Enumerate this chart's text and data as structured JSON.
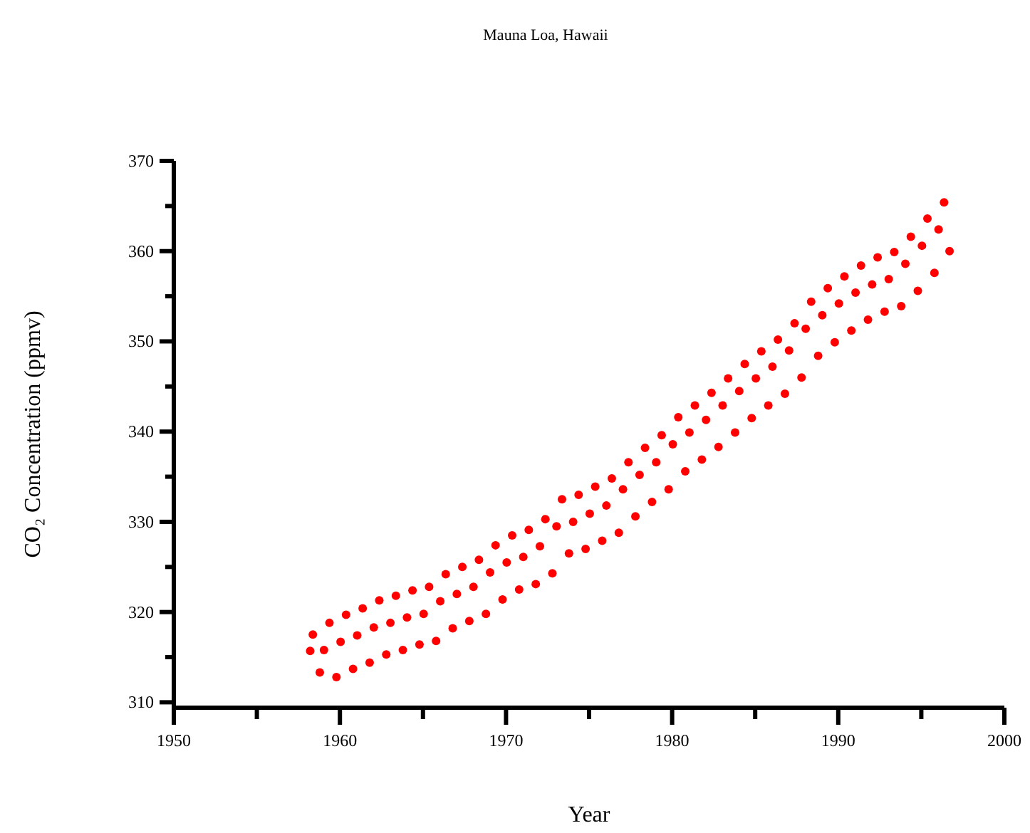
{
  "chart_data": {
    "type": "scatter",
    "title": "Mauna Loa, Hawaii",
    "xlabel": "Year",
    "ylabel": "CO₂ Concentration (ppmv)",
    "xlim": [
      1950,
      2000
    ],
    "ylim": [
      309.4,
      370
    ],
    "xticks": [
      1950,
      {
        "value": 1955,
        "label": null
      },
      1960,
      {
        "value": 1965,
        "label": null
      },
      1970,
      {
        "value": 1975,
        "label": null
      },
      1980,
      {
        "value": 1985,
        "label": null
      },
      1990,
      {
        "value": 1995,
        "label": null
      },
      2000
    ],
    "yticks": [
      310,
      {
        "value": 315,
        "label": null
      },
      320,
      {
        "value": 325,
        "label": null
      },
      330,
      {
        "value": 335,
        "label": null
      },
      340,
      {
        "value": 345,
        "label": null
      },
      350,
      {
        "value": 355,
        "label": null
      },
      360,
      {
        "value": 365,
        "label": null
      },
      370
    ],
    "grid": false,
    "marker": "circle",
    "series": [
      {
        "color": "#ff0000",
        "x": [
          1958.21,
          1958.37,
          1958.79,
          1959.04,
          1959.37,
          1959.79,
          1960.04,
          1960.37,
          1960.79,
          1961.04,
          1961.37,
          1961.79,
          1962.04,
          1962.37,
          1962.79,
          1963.04,
          1963.37,
          1963.79,
          1964.04,
          1964.37,
          1964.79,
          1965.04,
          1965.37,
          1965.79,
          1966.04,
          1966.37,
          1966.79,
          1967.04,
          1967.37,
          1967.79,
          1968.04,
          1968.37,
          1968.79,
          1969.04,
          1969.37,
          1969.79,
          1970.04,
          1970.37,
          1970.79,
          1971.04,
          1971.37,
          1971.79,
          1972.04,
          1972.37,
          1972.79,
          1973.04,
          1973.37,
          1973.79,
          1974.04,
          1974.37,
          1974.79,
          1975.04,
          1975.37,
          1975.79,
          1976.04,
          1976.37,
          1976.79,
          1977.04,
          1977.37,
          1977.79,
          1978.04,
          1978.37,
          1978.79,
          1979.04,
          1979.37,
          1979.79,
          1980.04,
          1980.37,
          1980.79,
          1981.04,
          1981.37,
          1981.79,
          1982.04,
          1982.37,
          1982.79,
          1983.04,
          1983.37,
          1983.79,
          1984.04,
          1984.37,
          1984.79,
          1985.04,
          1985.37,
          1985.79,
          1986.04,
          1986.37,
          1986.79,
          1987.04,
          1987.37,
          1987.79,
          1988.04,
          1988.37,
          1988.79,
          1989.04,
          1989.37,
          1989.79,
          1990.04,
          1990.37,
          1990.79,
          1991.04,
          1991.37,
          1991.79,
          1992.04,
          1992.37,
          1992.79,
          1993.04,
          1993.37,
          1993.79,
          1994.04,
          1994.37,
          1994.79,
          1995.04,
          1995.37,
          1995.79,
          1996.04,
          1996.37,
          1996.7
        ],
        "values": [
          315.7,
          317.5,
          313.3,
          315.8,
          318.8,
          312.8,
          316.7,
          319.7,
          313.7,
          317.4,
          320.4,
          314.4,
          318.3,
          321.3,
          315.3,
          318.8,
          321.8,
          315.8,
          319.4,
          322.4,
          316.4,
          319.8,
          322.8,
          316.8,
          321.2,
          324.2,
          318.2,
          322.0,
          325.0,
          319.0,
          322.8,
          325.8,
          319.8,
          324.4,
          327.4,
          321.4,
          325.5,
          328.5,
          322.5,
          326.1,
          329.1,
          323.1,
          327.3,
          330.3,
          324.3,
          329.5,
          332.5,
          326.5,
          330.0,
          333.0,
          327.0,
          330.9,
          333.9,
          327.9,
          331.8,
          334.8,
          328.8,
          333.6,
          336.6,
          330.6,
          335.2,
          338.2,
          332.2,
          336.6,
          339.6,
          333.6,
          338.6,
          341.6,
          335.6,
          339.9,
          342.9,
          336.9,
          341.3,
          344.3,
          338.3,
          342.9,
          345.9,
          339.9,
          344.5,
          347.5,
          341.5,
          345.9,
          348.9,
          342.9,
          347.2,
          350.2,
          344.2,
          349.0,
          352.0,
          346.0,
          351.4,
          354.4,
          348.4,
          352.9,
          355.9,
          349.9,
          354.2,
          357.2,
          351.2,
          355.4,
          358.4,
          352.4,
          356.3,
          359.3,
          353.3,
          356.9,
          359.9,
          353.9,
          358.6,
          361.6,
          355.6,
          360.6,
          363.6,
          357.6,
          362.4,
          365.4,
          360.0
        ]
      }
    ]
  }
}
